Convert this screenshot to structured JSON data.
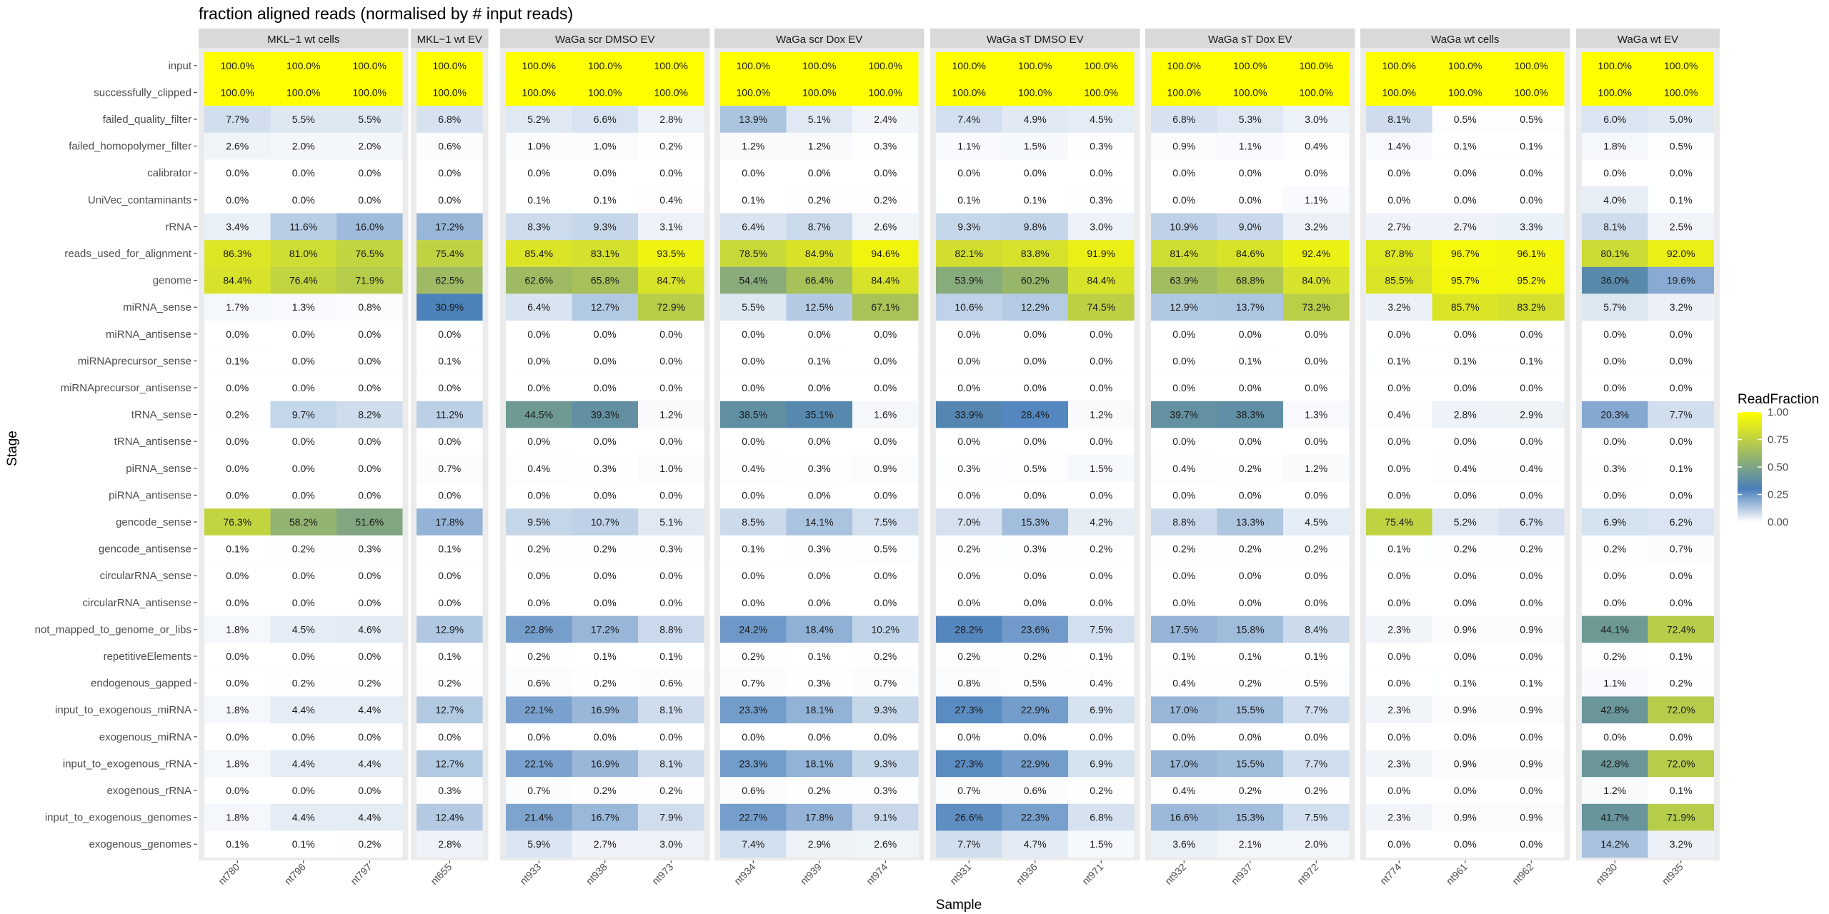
{
  "chart_data": {
    "type": "heatmap",
    "title": "fraction aligned reads (normalised by # input reads)",
    "xlabel": "Sample",
    "ylabel": "Stage",
    "stages": [
      "input",
      "successfully_clipped",
      "failed_quality_filter",
      "failed_homopolymer_filter",
      "calibrator",
      "UniVec_contaminants",
      "rRNA",
      "reads_used_for_alignment",
      "genome",
      "miRNA_sense",
      "miRNA_antisense",
      "miRNAprecursor_sense",
      "miRNAprecursor_antisense",
      "tRNA_sense",
      "tRNA_antisense",
      "piRNA_sense",
      "piRNA_antisense",
      "gencode_sense",
      "gencode_antisense",
      "circularRNA_sense",
      "circularRNA_antisense",
      "not_mapped_to_genome_or_libs",
      "repetitiveElements",
      "endogenous_gapped",
      "input_to_exogenous_miRNA",
      "exogenous_miRNA",
      "input_to_exogenous_rRNA",
      "exogenous_rRNA",
      "input_to_exogenous_genomes",
      "exogenous_genomes"
    ],
    "legend": {
      "title": "ReadFraction",
      "ticks": [
        "1.00",
        "0.75",
        "0.50",
        "0.25",
        "0.00"
      ],
      "range": [
        0,
        1
      ],
      "colors": [
        "#ffffff",
        "#4a7fbb",
        "#ffff00"
      ]
    },
    "facets": [
      {
        "name": "MKL−1 wt cells",
        "samples": [
          "nt780",
          "nt796",
          "nt797"
        ],
        "values": [
          [
            100.0,
            100.0,
            100.0
          ],
          [
            100.0,
            100.0,
            100.0
          ],
          [
            7.7,
            5.5,
            5.5
          ],
          [
            2.6,
            2.0,
            2.0
          ],
          [
            0.0,
            0.0,
            0.0
          ],
          [
            0.0,
            0.0,
            0.0
          ],
          [
            3.4,
            11.6,
            16.0
          ],
          [
            86.3,
            81.0,
            76.5
          ],
          [
            84.4,
            76.4,
            71.9
          ],
          [
            1.7,
            1.3,
            0.8
          ],
          [
            0.0,
            0.0,
            0.0
          ],
          [
            0.1,
            0.0,
            0.0
          ],
          [
            0.0,
            0.0,
            0.0
          ],
          [
            0.2,
            9.7,
            8.2
          ],
          [
            0.0,
            0.0,
            0.0
          ],
          [
            0.0,
            0.0,
            0.0
          ],
          [
            0.0,
            0.0,
            0.0
          ],
          [
            76.3,
            58.2,
            51.6
          ],
          [
            0.1,
            0.2,
            0.3
          ],
          [
            0.0,
            0.0,
            0.0
          ],
          [
            0.0,
            0.0,
            0.0
          ],
          [
            1.8,
            4.5,
            4.6
          ],
          [
            0.0,
            0.0,
            0.0
          ],
          [
            0.0,
            0.2,
            0.2
          ],
          [
            1.8,
            4.4,
            4.4
          ],
          [
            0.0,
            0.0,
            0.0
          ],
          [
            1.8,
            4.4,
            4.4
          ],
          [
            0.0,
            0.0,
            0.0
          ],
          [
            1.8,
            4.4,
            4.4
          ],
          [
            0.1,
            0.1,
            0.2
          ]
        ]
      },
      {
        "name": "MKL−1 wt EV",
        "samples": [
          "nt655"
        ],
        "values": [
          [
            100.0
          ],
          [
            100.0
          ],
          [
            6.8
          ],
          [
            0.6
          ],
          [
            0.0
          ],
          [
            0.0
          ],
          [
            17.2
          ],
          [
            75.4
          ],
          [
            62.5
          ],
          [
            30.9
          ],
          [
            0.0
          ],
          [
            0.1
          ],
          [
            0.0
          ],
          [
            11.2
          ],
          [
            0.0
          ],
          [
            0.7
          ],
          [
            0.0
          ],
          [
            17.8
          ],
          [
            0.1
          ],
          [
            0.0
          ],
          [
            0.0
          ],
          [
            12.9
          ],
          [
            0.1
          ],
          [
            0.2
          ],
          [
            12.7
          ],
          [
            0.0
          ],
          [
            12.7
          ],
          [
            0.3
          ],
          [
            12.4
          ],
          [
            2.8
          ]
        ]
      },
      {
        "name": "WaGa scr DMSO EV",
        "samples": [
          "nt933",
          "nt938",
          "nt973"
        ],
        "values": [
          [
            100.0,
            100.0,
            100.0
          ],
          [
            100.0,
            100.0,
            100.0
          ],
          [
            5.2,
            6.6,
            2.8
          ],
          [
            1.0,
            1.0,
            0.2
          ],
          [
            0.0,
            0.0,
            0.0
          ],
          [
            0.1,
            0.1,
            0.4
          ],
          [
            8.3,
            9.3,
            3.1
          ],
          [
            85.4,
            83.1,
            93.5
          ],
          [
            62.6,
            65.8,
            84.7
          ],
          [
            6.4,
            12.7,
            72.9
          ],
          [
            0.0,
            0.0,
            0.0
          ],
          [
            0.0,
            0.0,
            0.0
          ],
          [
            0.0,
            0.0,
            0.0
          ],
          [
            44.5,
            39.3,
            1.2
          ],
          [
            0.0,
            0.0,
            0.0
          ],
          [
            0.4,
            0.3,
            1.0
          ],
          [
            0.0,
            0.0,
            0.0
          ],
          [
            9.5,
            10.7,
            5.1
          ],
          [
            0.2,
            0.2,
            0.3
          ],
          [
            0.0,
            0.0,
            0.0
          ],
          [
            0.0,
            0.0,
            0.0
          ],
          [
            22.8,
            17.2,
            8.8
          ],
          [
            0.2,
            0.1,
            0.1
          ],
          [
            0.6,
            0.2,
            0.6
          ],
          [
            22.1,
            16.9,
            8.1
          ],
          [
            0.0,
            0.0,
            0.0
          ],
          [
            22.1,
            16.9,
            8.1
          ],
          [
            0.7,
            0.2,
            0.2
          ],
          [
            21.4,
            16.7,
            7.9
          ],
          [
            5.9,
            2.7,
            3.0
          ]
        ]
      },
      {
        "name": "WaGa scr Dox EV",
        "samples": [
          "nt934",
          "nt939",
          "nt974"
        ],
        "values": [
          [
            100.0,
            100.0,
            100.0
          ],
          [
            100.0,
            100.0,
            100.0
          ],
          [
            13.9,
            5.1,
            2.4
          ],
          [
            1.2,
            1.2,
            0.3
          ],
          [
            0.0,
            0.0,
            0.0
          ],
          [
            0.1,
            0.2,
            0.2
          ],
          [
            6.4,
            8.7,
            2.6
          ],
          [
            78.5,
            84.9,
            94.6
          ],
          [
            54.4,
            66.4,
            84.4
          ],
          [
            5.5,
            12.5,
            67.1
          ],
          [
            0.0,
            0.0,
            0.0
          ],
          [
            0.0,
            0.1,
            0.0
          ],
          [
            0.0,
            0.0,
            0.0
          ],
          [
            38.5,
            35.1,
            1.6
          ],
          [
            0.0,
            0.0,
            0.0
          ],
          [
            0.4,
            0.3,
            0.9
          ],
          [
            0.0,
            0.0,
            0.0
          ],
          [
            8.5,
            14.1,
            7.5
          ],
          [
            0.1,
            0.3,
            0.5
          ],
          [
            0.0,
            0.0,
            0.0
          ],
          [
            0.0,
            0.0,
            0.0
          ],
          [
            24.2,
            18.4,
            10.2
          ],
          [
            0.2,
            0.1,
            0.2
          ],
          [
            0.7,
            0.3,
            0.7
          ],
          [
            23.3,
            18.1,
            9.3
          ],
          [
            0.0,
            0.0,
            0.0
          ],
          [
            23.3,
            18.1,
            9.3
          ],
          [
            0.6,
            0.2,
            0.3
          ],
          [
            22.7,
            17.8,
            9.1
          ],
          [
            7.4,
            2.9,
            2.6
          ]
        ]
      },
      {
        "name": "WaGa sT DMSO EV",
        "samples": [
          "nt931",
          "nt936",
          "nt971"
        ],
        "values": [
          [
            100.0,
            100.0,
            100.0
          ],
          [
            100.0,
            100.0,
            100.0
          ],
          [
            7.4,
            4.9,
            4.5
          ],
          [
            1.1,
            1.5,
            0.3
          ],
          [
            0.0,
            0.0,
            0.0
          ],
          [
            0.1,
            0.1,
            0.3
          ],
          [
            9.3,
            9.8,
            3.0
          ],
          [
            82.1,
            83.8,
            91.9
          ],
          [
            53.9,
            60.2,
            84.4
          ],
          [
            10.6,
            12.2,
            74.5
          ],
          [
            0.0,
            0.0,
            0.0
          ],
          [
            0.0,
            0.0,
            0.0
          ],
          [
            0.0,
            0.0,
            0.0
          ],
          [
            33.9,
            28.4,
            1.2
          ],
          [
            0.0,
            0.0,
            0.0
          ],
          [
            0.3,
            0.5,
            1.5
          ],
          [
            0.0,
            0.0,
            0.0
          ],
          [
            7.0,
            15.3,
            4.2
          ],
          [
            0.2,
            0.3,
            0.2
          ],
          [
            0.0,
            0.0,
            0.0
          ],
          [
            0.0,
            0.0,
            0.0
          ],
          [
            28.2,
            23.6,
            7.5
          ],
          [
            0.2,
            0.2,
            0.1
          ],
          [
            0.8,
            0.5,
            0.4
          ],
          [
            27.3,
            22.9,
            6.9
          ],
          [
            0.0,
            0.0,
            0.0
          ],
          [
            27.3,
            22.9,
            6.9
          ],
          [
            0.7,
            0.6,
            0.2
          ],
          [
            26.6,
            22.3,
            6.8
          ],
          [
            7.7,
            4.7,
            1.5
          ]
        ]
      },
      {
        "name": "WaGa sT Dox EV",
        "samples": [
          "nt932",
          "nt937",
          "nt972"
        ],
        "values": [
          [
            100.0,
            100.0,
            100.0
          ],
          [
            100.0,
            100.0,
            100.0
          ],
          [
            6.8,
            5.3,
            3.0
          ],
          [
            0.9,
            1.1,
            0.4
          ],
          [
            0.0,
            0.0,
            0.0
          ],
          [
            0.0,
            0.0,
            1.1
          ],
          [
            10.9,
            9.0,
            3.2
          ],
          [
            81.4,
            84.6,
            92.4
          ],
          [
            63.9,
            68.8,
            84.0
          ],
          [
            12.9,
            13.7,
            73.2
          ],
          [
            0.0,
            0.0,
            0.0
          ],
          [
            0.0,
            0.1,
            0.0
          ],
          [
            0.0,
            0.0,
            0.0
          ],
          [
            39.7,
            38.3,
            1.3
          ],
          [
            0.0,
            0.0,
            0.0
          ],
          [
            0.4,
            0.2,
            1.2
          ],
          [
            0.0,
            0.0,
            0.0
          ],
          [
            8.8,
            13.3,
            4.5
          ],
          [
            0.2,
            0.2,
            0.2
          ],
          [
            0.0,
            0.0,
            0.0
          ],
          [
            0.0,
            0.0,
            0.0
          ],
          [
            17.5,
            15.8,
            8.4
          ],
          [
            0.1,
            0.1,
            0.1
          ],
          [
            0.4,
            0.2,
            0.5
          ],
          [
            17.0,
            15.5,
            7.7
          ],
          [
            0.0,
            0.0,
            0.0
          ],
          [
            17.0,
            15.5,
            7.7
          ],
          [
            0.4,
            0.2,
            0.2
          ],
          [
            16.6,
            15.3,
            7.5
          ],
          [
            3.6,
            2.1,
            2.0
          ]
        ]
      },
      {
        "name": "WaGa wt cells",
        "samples": [
          "nt774",
          "nt961",
          "nt962"
        ],
        "values": [
          [
            100.0,
            100.0,
            100.0
          ],
          [
            100.0,
            100.0,
            100.0
          ],
          [
            8.1,
            0.5,
            0.5
          ],
          [
            1.4,
            0.1,
            0.1
          ],
          [
            0.0,
            0.0,
            0.0
          ],
          [
            0.0,
            0.0,
            0.0
          ],
          [
            2.7,
            2.7,
            3.3
          ],
          [
            87.8,
            96.7,
            96.1
          ],
          [
            85.5,
            95.7,
            95.2
          ],
          [
            3.2,
            85.7,
            83.2
          ],
          [
            0.0,
            0.0,
            0.0
          ],
          [
            0.1,
            0.1,
            0.1
          ],
          [
            0.0,
            0.0,
            0.0
          ],
          [
            0.4,
            2.8,
            2.9
          ],
          [
            0.0,
            0.0,
            0.0
          ],
          [
            0.0,
            0.4,
            0.4
          ],
          [
            0.0,
            0.0,
            0.0
          ],
          [
            75.4,
            5.2,
            6.7
          ],
          [
            0.1,
            0.2,
            0.2
          ],
          [
            0.0,
            0.0,
            0.0
          ],
          [
            0.0,
            0.0,
            0.0
          ],
          [
            2.3,
            0.9,
            0.9
          ],
          [
            0.0,
            0.0,
            0.0
          ],
          [
            0.0,
            0.1,
            0.1
          ],
          [
            2.3,
            0.9,
            0.9
          ],
          [
            0.0,
            0.0,
            0.0
          ],
          [
            2.3,
            0.9,
            0.9
          ],
          [
            0.0,
            0.0,
            0.0
          ],
          [
            2.3,
            0.9,
            0.9
          ],
          [
            0.0,
            0.0,
            0.0
          ]
        ]
      },
      {
        "name": "WaGa wt EV",
        "samples": [
          "nt930",
          "nt935"
        ],
        "values": [
          [
            100.0,
            100.0
          ],
          [
            100.0,
            100.0
          ],
          [
            6.0,
            5.0
          ],
          [
            1.8,
            0.5
          ],
          [
            0.0,
            0.0
          ],
          [
            4.0,
            0.1
          ],
          [
            8.1,
            2.5
          ],
          [
            80.1,
            92.0
          ],
          [
            36.0,
            19.6
          ],
          [
            5.7,
            3.2
          ],
          [
            0.0,
            0.0
          ],
          [
            0.0,
            0.0
          ],
          [
            0.0,
            0.0
          ],
          [
            20.3,
            7.7
          ],
          [
            0.0,
            0.0
          ],
          [
            0.3,
            0.1
          ],
          [
            0.0,
            0.0
          ],
          [
            6.9,
            6.2
          ],
          [
            0.2,
            0.7
          ],
          [
            0.0,
            0.0
          ],
          [
            0.0,
            0.0
          ],
          [
            44.1,
            72.4
          ],
          [
            0.2,
            0.1
          ],
          [
            1.1,
            0.2
          ],
          [
            42.8,
            72.0
          ],
          [
            0.0,
            0.0
          ],
          [
            42.8,
            72.0
          ],
          [
            1.2,
            0.1
          ],
          [
            41.7,
            71.9
          ],
          [
            14.2,
            3.2
          ]
        ]
      }
    ]
  }
}
